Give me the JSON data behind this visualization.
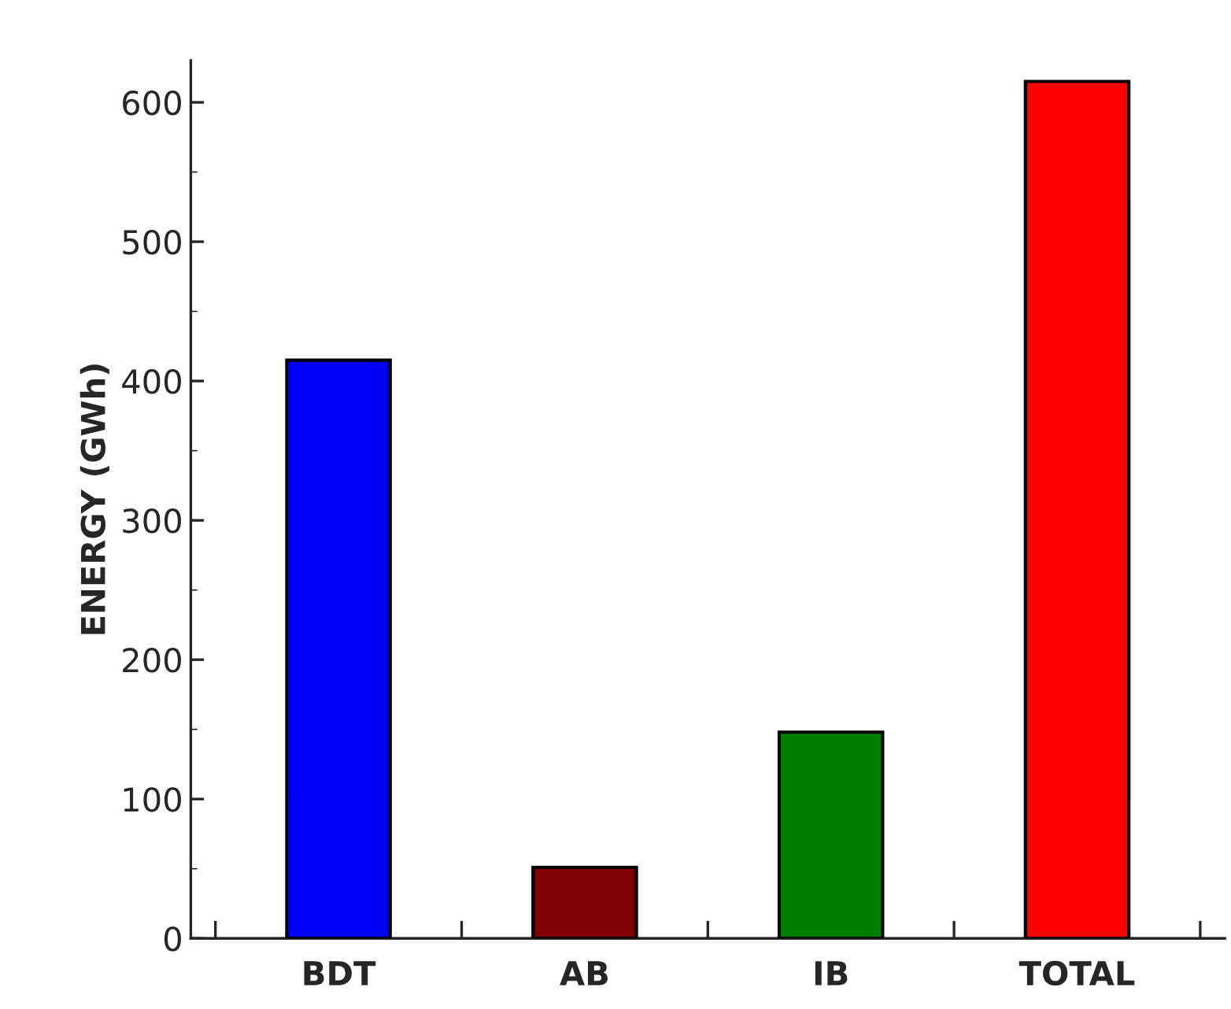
{
  "chart_data": {
    "type": "bar",
    "ylabel": "ENERGY (GWh)",
    "categories": [
      "BDT",
      "AB",
      "IB",
      "TOTAL"
    ],
    "values": [
      415,
      51,
      148,
      615
    ],
    "colors": [
      "#0000ff",
      "#800000",
      "#008000",
      "#ff0000"
    ],
    "ylim": [
      0,
      630
    ],
    "yticks": [
      0,
      100,
      200,
      300,
      400,
      500,
      600
    ],
    "grid": false
  }
}
